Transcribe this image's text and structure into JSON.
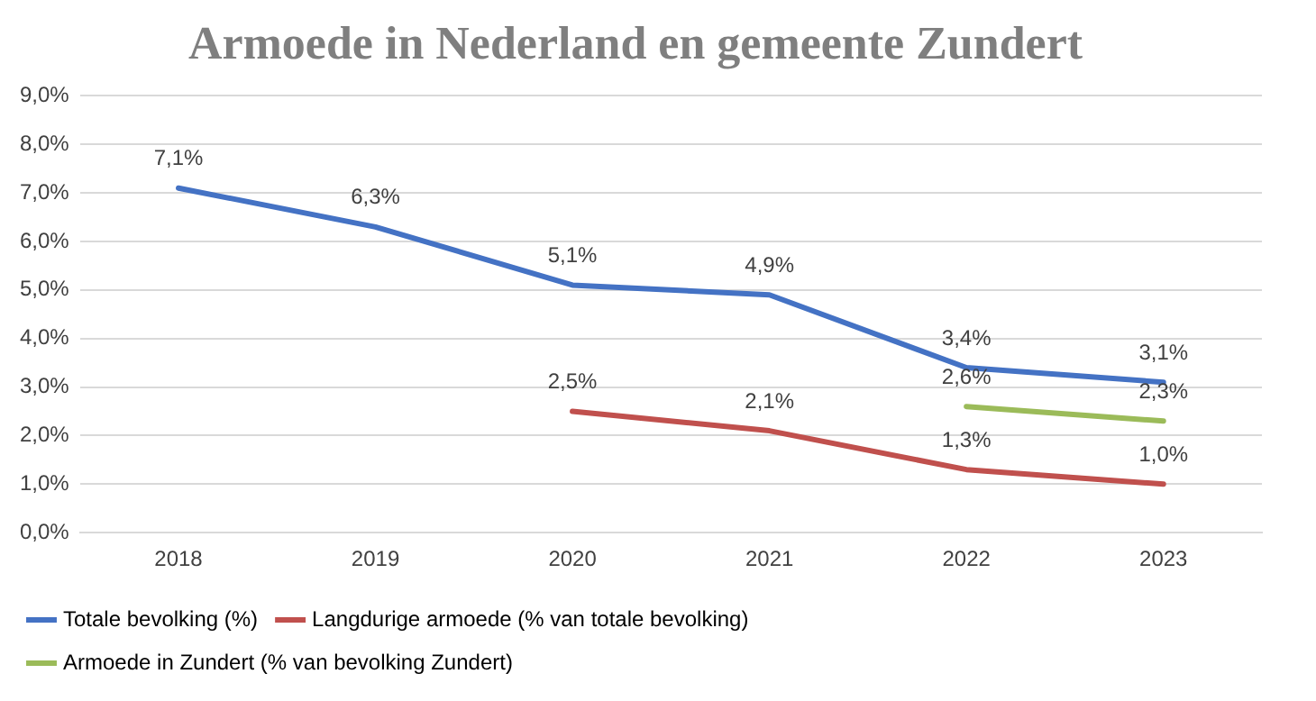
{
  "chart_data": {
    "type": "line",
    "title": "Armoede in Nederland en gemeente Zundert",
    "categories": [
      "2018",
      "2019",
      "2020",
      "2021",
      "2022",
      "2023"
    ],
    "series": [
      {
        "name": "Totale bevolking (%)",
        "color": "#4472c4",
        "values": [
          7.1,
          6.3,
          5.1,
          4.9,
          3.4,
          3.1
        ],
        "value_labels": [
          "7,1%",
          "6,3%",
          "5,1%",
          "4,9%",
          "3,4%",
          "3,1%"
        ]
      },
      {
        "name": "Langdurige armoede (% van totale bevolking)",
        "color": "#c0504d",
        "values": [
          null,
          null,
          2.5,
          2.1,
          1.3,
          1.0
        ],
        "value_labels": [
          null,
          null,
          "2,5%",
          "2,1%",
          "1,3%",
          "1,0%"
        ]
      },
      {
        "name": "Armoede in Zundert (% van bevolking Zundert)",
        "color": "#9bbb59",
        "values": [
          null,
          null,
          null,
          null,
          2.6,
          2.3
        ],
        "value_labels": [
          null,
          null,
          null,
          null,
          "2,6%",
          "2,3%"
        ]
      }
    ],
    "ylim": [
      0,
      9
    ],
    "yticks": [
      {
        "value": 0,
        "label": "0,0%"
      },
      {
        "value": 1,
        "label": "1,0%"
      },
      {
        "value": 2,
        "label": "2,0%"
      },
      {
        "value": 3,
        "label": "3,0%"
      },
      {
        "value": 4,
        "label": "4,0%"
      },
      {
        "value": 5,
        "label": "5,0%"
      },
      {
        "value": 6,
        "label": "6,0%"
      },
      {
        "value": 7,
        "label": "7,0%"
      },
      {
        "value": 8,
        "label": "8,0%"
      },
      {
        "value": 9,
        "label": "9,0%"
      }
    ],
    "grid": "y",
    "legend": "bottom",
    "marker": "none",
    "line_style": "solid"
  }
}
